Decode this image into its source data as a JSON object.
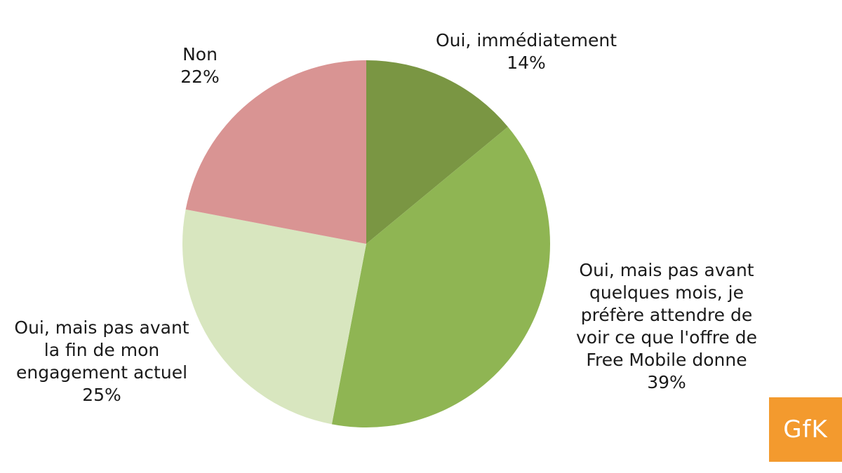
{
  "chart_data": {
    "type": "pie",
    "start_angle_deg": 0,
    "direction": "clockwise",
    "slices": [
      {
        "label_lines": [
          "Oui, immédiatement"
        ],
        "value": 14,
        "value_label": "14%",
        "color": "#7a9643"
      },
      {
        "label_lines": [
          "Oui, mais pas avant",
          "quelques mois, je",
          "préfère attendre de",
          "voir ce que l'offre de",
          "Free Mobile donne"
        ],
        "value": 39,
        "value_label": "39%",
        "color": "#8fb553"
      },
      {
        "label_lines": [
          "Oui, mais pas avant",
          "la fin de mon",
          "engagement actuel"
        ],
        "value": 25,
        "value_label": "25%",
        "color": "#d8e6bf"
      },
      {
        "label_lines": [
          "Non"
        ],
        "value": 22,
        "value_label": "22%",
        "color": "#d99493"
      }
    ]
  },
  "logo": {
    "text": "GfK",
    "color": "#f39a2e"
  }
}
